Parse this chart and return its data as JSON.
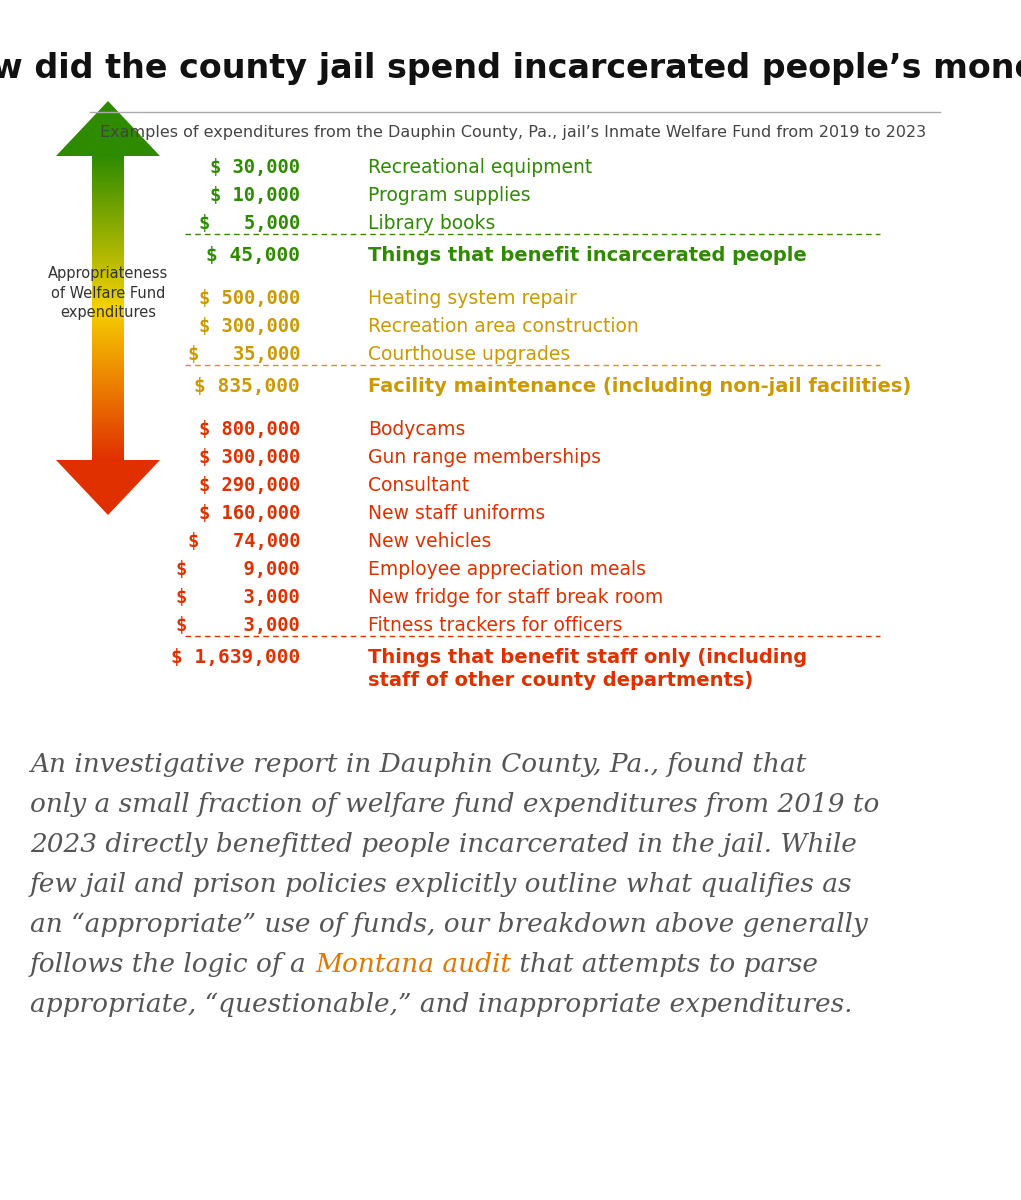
{
  "title": "How did the county jail spend incarcerated people’s money?",
  "subtitle": "Examples of expenditures from the Dauphin County, Pa., jail’s Inmate Welfare Fund from 2019 to 2023",
  "title_fontsize": 24,
  "subtitle_fontsize": 11.5,
  "background_color": "#ffffff",
  "green_section": {
    "color": "#2e8b00",
    "items": [
      {
        "amount": "$ 30,000",
        "description": "Recreational equipment"
      },
      {
        "amount": "$ 10,000",
        "description": "Program supplies"
      },
      {
        "amount": "$   5,000",
        "description": "Library books"
      }
    ],
    "total_amount": "$ 45,000",
    "total_description": "Things that benefit incarcerated people"
  },
  "yellow_section": {
    "color": "#cc9900",
    "items": [
      {
        "amount": "$ 500,000",
        "description": "Heating system repair"
      },
      {
        "amount": "$ 300,000",
        "description": "Recreation area construction"
      },
      {
        "amount": "$   35,000",
        "description": "Courthouse upgrades"
      }
    ],
    "total_amount": "$ 835,000",
    "total_description": "Facility maintenance (including non-jail facilities)"
  },
  "red_section": {
    "color": "#e03000",
    "items": [
      {
        "amount": "$ 800,000",
        "description": "Bodycams"
      },
      {
        "amount": "$ 300,000",
        "description": "Gun range memberships"
      },
      {
        "amount": "$ 290,000",
        "description": "Consultant"
      },
      {
        "amount": "$ 160,000",
        "description": "New staff uniforms"
      },
      {
        "amount": "$   74,000",
        "description": "New vehicles"
      },
      {
        "amount": "$     9,000",
        "description": "Employee appreciation meals"
      },
      {
        "amount": "$     3,000",
        "description": "New fridge for staff break room"
      },
      {
        "amount": "$     3,000",
        "description": "Fitness trackers for officers"
      }
    ],
    "total_amount": "$ 1,639,000",
    "total_description": "Things that benefit staff only (including\nstaff of other county departments)"
  },
  "arrow_label": "Appropriateness\nof Welfare Fund\nexpenditures",
  "arrow_label_fontsize": 10.5,
  "body_text_color": "#555555",
  "body_highlight_color": "#e07800",
  "body_highlight": "Montana audit",
  "body_fontsize": 19,
  "body_lines": [
    [
      {
        "text": "An investigative report in Dauphin County, Pa., found that",
        "color": "#555555"
      }
    ],
    [
      {
        "text": "only a small fraction of welfare fund expenditures from 2019 to",
        "color": "#555555"
      }
    ],
    [
      {
        "text": "2023 directly benefitted people incarcerated in the jail. While",
        "color": "#555555"
      }
    ],
    [
      {
        "text": "few jail and prison policies explicitly outline what qualifies as",
        "color": "#555555"
      }
    ],
    [
      {
        "text": "an “appropriate” use of funds, our breakdown above generally",
        "color": "#555555"
      }
    ],
    [
      {
        "text": "follows the logic of a ",
        "color": "#555555"
      },
      {
        "text": "Montana audit",
        "color": "#e07800"
      },
      {
        "text": " that attempts to parse",
        "color": "#555555"
      }
    ],
    [
      {
        "text": "appropriate, “questionable,” and inappropriate expenditures.",
        "color": "#555555"
      }
    ]
  ]
}
